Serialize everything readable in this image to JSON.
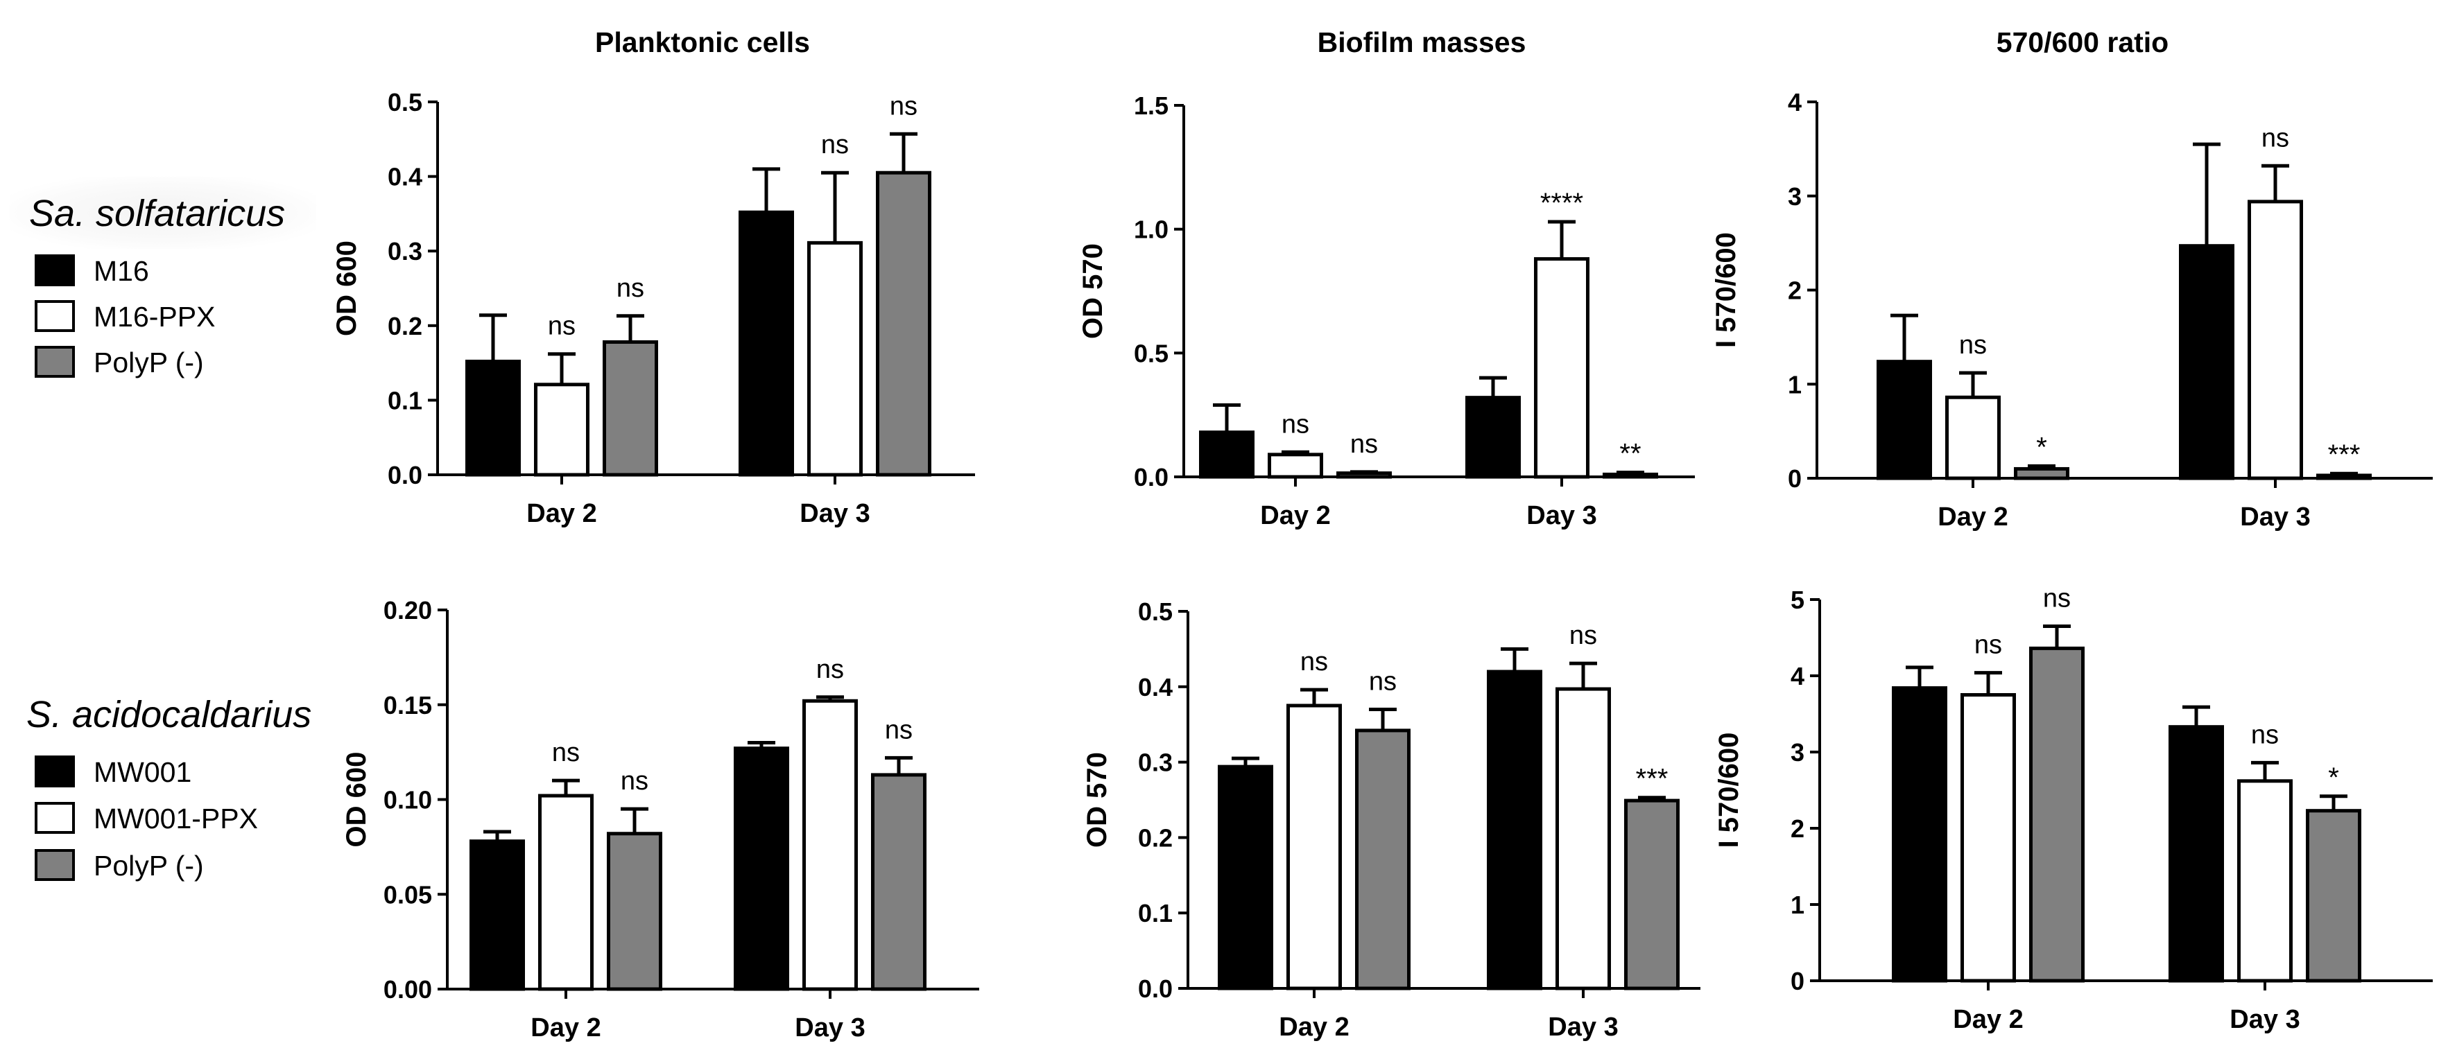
{
  "column_titles": [
    "Planktonic cells",
    "Biofilm masses",
    "570/600 ratio"
  ],
  "legends": [
    {
      "species": "Sa. solfataricus",
      "items": [
        {
          "label": "M16",
          "color": "#000000"
        },
        {
          "label": "M16-PPX",
          "color": "#ffffff"
        },
        {
          "label": "PolyP (-)",
          "color": "#808080"
        }
      ]
    },
    {
      "species": "S. acidocaldarius",
      "items": [
        {
          "label": "MW001",
          "color": "#000000"
        },
        {
          "label": "MW001-PPX",
          "color": "#ffffff"
        },
        {
          "label": "PolyP (-)",
          "color": "#808080"
        }
      ]
    }
  ],
  "chart_data": [
    {
      "type": "bar",
      "row": 0,
      "col": 0,
      "categories": [
        "Day 2",
        "Day 3"
      ],
      "ylabel": "OD 600",
      "ylim": [
        0,
        0.5
      ],
      "yticks": [
        "0.0",
        "0.1",
        "0.2",
        "0.3",
        "0.4",
        "0.5"
      ],
      "series": [
        {
          "name": "M16",
          "color": "#000000",
          "values": [
            0.152,
            0.352
          ],
          "errors": [
            0.062,
            0.058
          ],
          "annotations": [
            "",
            ""
          ]
        },
        {
          "name": "M16-PPX",
          "color": "#ffffff",
          "values": [
            0.121,
            0.311
          ],
          "errors": [
            0.041,
            0.094
          ],
          "annotations": [
            "ns",
            "ns"
          ]
        },
        {
          "name": "PolyP (-)",
          "color": "#808080",
          "values": [
            0.178,
            0.405
          ],
          "errors": [
            0.035,
            0.052
          ],
          "annotations": [
            "ns",
            "ns"
          ]
        }
      ]
    },
    {
      "type": "bar",
      "row": 0,
      "col": 1,
      "categories": [
        "Day 2",
        "Day 3"
      ],
      "ylabel": "OD 570",
      "ylim": [
        0,
        1.5
      ],
      "yticks": [
        "0.0",
        "0.5",
        "1.0",
        "1.5"
      ],
      "series": [
        {
          "name": "M16",
          "color": "#000000",
          "values": [
            0.18,
            0.32
          ],
          "errors": [
            0.11,
            0.08
          ],
          "annotations": [
            "",
            ""
          ]
        },
        {
          "name": "M16-PPX",
          "color": "#ffffff",
          "values": [
            0.09,
            0.88
          ],
          "errors": [
            0.01,
            0.15
          ],
          "annotations": [
            "ns",
            "****"
          ]
        },
        {
          "name": "PolyP (-)",
          "color": "#808080",
          "values": [
            0.015,
            0.01
          ],
          "errors": [
            0.005,
            0.008
          ],
          "annotations": [
            "ns",
            "**"
          ]
        }
      ]
    },
    {
      "type": "bar",
      "row": 0,
      "col": 2,
      "categories": [
        "Day 2",
        "Day 3"
      ],
      "ylabel": "I 570/600",
      "ylim": [
        0,
        4
      ],
      "yticks": [
        "0",
        "1",
        "2",
        "3",
        "4"
      ],
      "series": [
        {
          "name": "M16",
          "color": "#000000",
          "values": [
            1.24,
            2.47
          ],
          "errors": [
            0.49,
            1.08
          ],
          "annotations": [
            "",
            ""
          ]
        },
        {
          "name": "M16-PPX",
          "color": "#ffffff",
          "values": [
            0.86,
            2.94
          ],
          "errors": [
            0.26,
            0.38
          ],
          "annotations": [
            "ns",
            "ns"
          ]
        },
        {
          "name": "PolyP (-)",
          "color": "#808080",
          "values": [
            0.1,
            0.03
          ],
          "errors": [
            0.03,
            0.02
          ],
          "annotations": [
            "*",
            "***"
          ]
        }
      ]
    },
    {
      "type": "bar",
      "row": 1,
      "col": 0,
      "categories": [
        "Day 2",
        "Day 3"
      ],
      "ylabel": "OD 600",
      "ylim": [
        0,
        0.2
      ],
      "yticks": [
        "0.00",
        "0.05",
        "0.10",
        "0.15",
        "0.20"
      ],
      "series": [
        {
          "name": "MW001",
          "color": "#000000",
          "values": [
            0.078,
            0.127
          ],
          "errors": [
            0.005,
            0.003
          ],
          "annotations": [
            "",
            ""
          ]
        },
        {
          "name": "MW001-PPX",
          "color": "#ffffff",
          "values": [
            0.102,
            0.152
          ],
          "errors": [
            0.008,
            0.002
          ],
          "annotations": [
            "ns",
            "ns"
          ]
        },
        {
          "name": "PolyP (-)",
          "color": "#808080",
          "values": [
            0.082,
            0.113
          ],
          "errors": [
            0.013,
            0.009
          ],
          "annotations": [
            "ns",
            "ns"
          ]
        }
      ]
    },
    {
      "type": "bar",
      "row": 1,
      "col": 1,
      "categories": [
        "Day 2",
        "Day 3"
      ],
      "ylabel": "OD 570",
      "ylim": [
        0,
        0.5
      ],
      "yticks": [
        "0.0",
        "0.1",
        "0.2",
        "0.3",
        "0.4",
        "0.5"
      ],
      "series": [
        {
          "name": "MW001",
          "color": "#000000",
          "values": [
            0.294,
            0.42
          ],
          "errors": [
            0.011,
            0.03
          ],
          "annotations": [
            "",
            ""
          ]
        },
        {
          "name": "MW001-PPX",
          "color": "#ffffff",
          "values": [
            0.375,
            0.397
          ],
          "errors": [
            0.021,
            0.034
          ],
          "annotations": [
            "ns",
            "ns"
          ]
        },
        {
          "name": "PolyP (-)",
          "color": "#808080",
          "values": [
            0.342,
            0.249
          ],
          "errors": [
            0.028,
            0.004
          ],
          "annotations": [
            "ns",
            "***"
          ]
        }
      ]
    },
    {
      "type": "bar",
      "row": 1,
      "col": 2,
      "categories": [
        "Day 2",
        "Day 3"
      ],
      "ylabel": "I 570/600",
      "ylim": [
        0,
        5
      ],
      "yticks": [
        "0",
        "1",
        "2",
        "3",
        "4",
        "5"
      ],
      "series": [
        {
          "name": "MW001",
          "color": "#000000",
          "values": [
            3.84,
            3.33
          ],
          "errors": [
            0.27,
            0.26
          ],
          "annotations": [
            "",
            ""
          ]
        },
        {
          "name": "MW001-PPX",
          "color": "#ffffff",
          "values": [
            3.75,
            2.62
          ],
          "errors": [
            0.29,
            0.24
          ],
          "annotations": [
            "ns",
            "ns"
          ]
        },
        {
          "name": "PolyP (-)",
          "color": "#808080",
          "values": [
            4.36,
            2.23
          ],
          "errors": [
            0.29,
            0.19
          ],
          "annotations": [
            "ns",
            "*"
          ]
        }
      ]
    }
  ]
}
